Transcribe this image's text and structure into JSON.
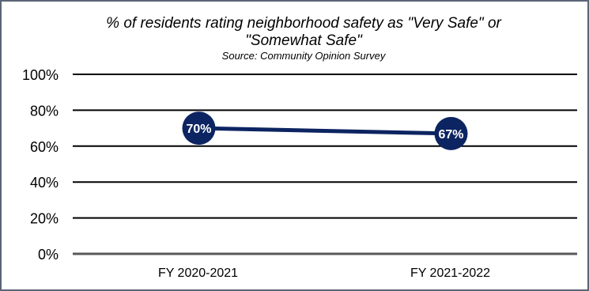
{
  "chart_data": {
    "type": "line",
    "title_lines": [
      "% of residents rating neighborhood safety as \"Very Safe\" or",
      "\"Somewhat Safe\""
    ],
    "subtitle": "Source: Community Opinion Survey",
    "categories": [
      "FY 2020-2021",
      "FY 2021-2022"
    ],
    "series": [
      {
        "values": [
          70,
          67
        ],
        "data_labels": [
          "70%",
          "67%"
        ],
        "color": "#0c2461"
      }
    ],
    "y_ticks": [
      "0%",
      "20%",
      "40%",
      "60%",
      "80%",
      "100%"
    ],
    "ylim": [
      0,
      100
    ],
    "grid": true,
    "legend": "none",
    "axis_color": "#595959"
  }
}
